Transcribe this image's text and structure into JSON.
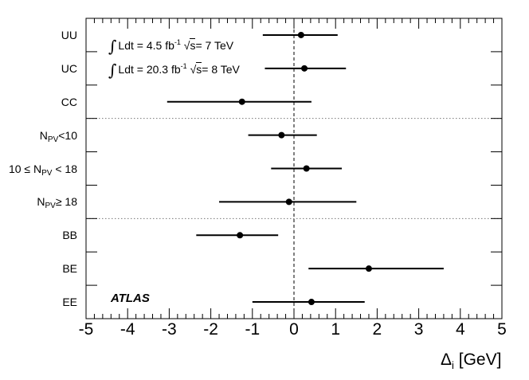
{
  "chart_data": {
    "type": "scatter",
    "subtype": "dot-and-whisker",
    "xlabel": {
      "main": "Δ",
      "sub": "i",
      "rest": " [GeV]"
    },
    "xlim": [
      -5,
      5
    ],
    "xticks": [
      "-5",
      "-4",
      "-3",
      "-2",
      "-1",
      "0",
      "1",
      "2",
      "3",
      "4",
      "5"
    ],
    "reference_line_x": 0,
    "categories": [
      {
        "main": "UU",
        "sub": "",
        "rest": "",
        "prefix": ""
      },
      {
        "main": "UC",
        "sub": "",
        "rest": "",
        "prefix": ""
      },
      {
        "main": "CC",
        "sub": "",
        "rest": "",
        "prefix": ""
      },
      {
        "prefix": "",
        "main": "N",
        "sub": "PV",
        "rest": "<10"
      },
      {
        "prefix": "10 ≤ ",
        "main": "N",
        "sub": "PV",
        "rest": " < 18"
      },
      {
        "prefix": "",
        "main": "N",
        "sub": "PV",
        "rest": "≥ 18"
      },
      {
        "main": "BB",
        "sub": "",
        "rest": "",
        "prefix": ""
      },
      {
        "main": "BE",
        "sub": "",
        "rest": "",
        "prefix": ""
      },
      {
        "main": "EE",
        "sub": "",
        "rest": "",
        "prefix": ""
      }
    ],
    "values": [
      0.17,
      0.25,
      -1.25,
      -0.3,
      0.3,
      -0.12,
      -1.3,
      1.8,
      0.42
    ],
    "err_low": [
      -0.75,
      -0.7,
      -3.05,
      -1.1,
      -0.55,
      -1.8,
      -2.35,
      0.35,
      -1.0
    ],
    "err_high": [
      1.05,
      1.25,
      0.42,
      0.55,
      1.15,
      1.5,
      -0.38,
      3.6,
      1.7
    ],
    "group_separators_after": [
      2,
      5
    ],
    "annotations": {
      "lumi_7": {
        "int": "∫",
        "a": "Ldt = 4.5 fb",
        "sup": "-1",
        "b": " ",
        "rad": "√",
        "s": "s",
        "c": "= 7 TeV"
      },
      "lumi_8": {
        "int": "∫",
        "a": "Ldt = 20.3 fb",
        "sup": "-1",
        "b": " ",
        "rad": "√",
        "s": "s",
        "c": "= 8 TeV"
      },
      "experiment": "ATLAS"
    }
  }
}
